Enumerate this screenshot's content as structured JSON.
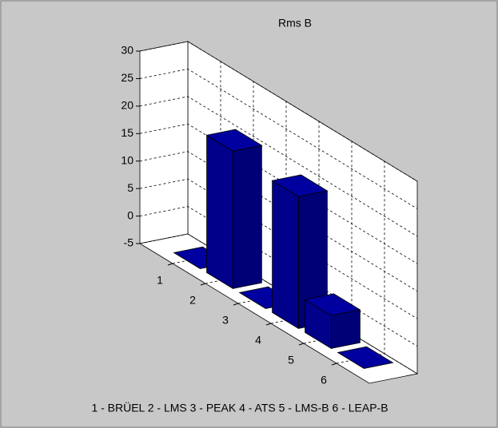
{
  "chart_data": {
    "type": "bar3",
    "title": "Rms  B",
    "categories": [
      "1",
      "2",
      "3",
      "4",
      "5",
      "6"
    ],
    "values": [
      -5,
      20,
      -5,
      19,
      1,
      -5
    ],
    "color": "#00008b",
    "zlim": [
      -5,
      30
    ],
    "zticks": [
      -5,
      0,
      5,
      10,
      15,
      20,
      25,
      30
    ],
    "grid": true,
    "footer": "1 - BRÜEL   2 - LMS   3 - PEAK   4 - ATS   5 - LMS-B   6 - LEAP-B"
  }
}
